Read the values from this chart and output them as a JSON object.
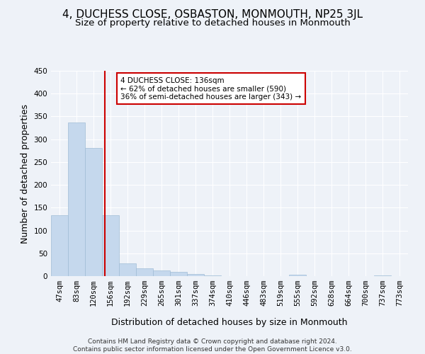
{
  "title": "4, DUCHESS CLOSE, OSBASTON, MONMOUTH, NP25 3JL",
  "subtitle": "Size of property relative to detached houses in Monmouth",
  "xlabel": "Distribution of detached houses by size in Monmouth",
  "ylabel": "Number of detached properties",
  "bar_labels": [
    "47sqm",
    "83sqm",
    "120sqm",
    "156sqm",
    "192sqm",
    "229sqm",
    "265sqm",
    "301sqm",
    "337sqm",
    "374sqm",
    "410sqm",
    "446sqm",
    "483sqm",
    "519sqm",
    "555sqm",
    "592sqm",
    "628sqm",
    "664sqm",
    "700sqm",
    "737sqm",
    "773sqm"
  ],
  "bar_values": [
    133,
    337,
    281,
    133,
    28,
    17,
    12,
    9,
    5,
    2,
    0,
    0,
    0,
    0,
    3,
    0,
    0,
    0,
    0,
    2,
    0
  ],
  "bar_color": "#c5d8ed",
  "bar_edge_color": "#a0bcd6",
  "ylim": [
    0,
    450
  ],
  "yticks": [
    0,
    50,
    100,
    150,
    200,
    250,
    300,
    350,
    400,
    450
  ],
  "vline_x": 2.67,
  "vline_color": "#cc0000",
  "annotation_box_text": "4 DUCHESS CLOSE: 136sqm\n← 62% of detached houses are smaller (590)\n36% of semi-detached houses are larger (343) →",
  "annotation_box_color": "#cc0000",
  "annotation_box_fill": "#ffffff",
  "footer_text": "Contains HM Land Registry data © Crown copyright and database right 2024.\nContains public sector information licensed under the Open Government Licence v3.0.",
  "background_color": "#eef2f8",
  "grid_color": "#ffffff",
  "title_fontsize": 11,
  "subtitle_fontsize": 9.5,
  "axis_label_fontsize": 9,
  "tick_fontsize": 7.5,
  "footer_fontsize": 6.5
}
